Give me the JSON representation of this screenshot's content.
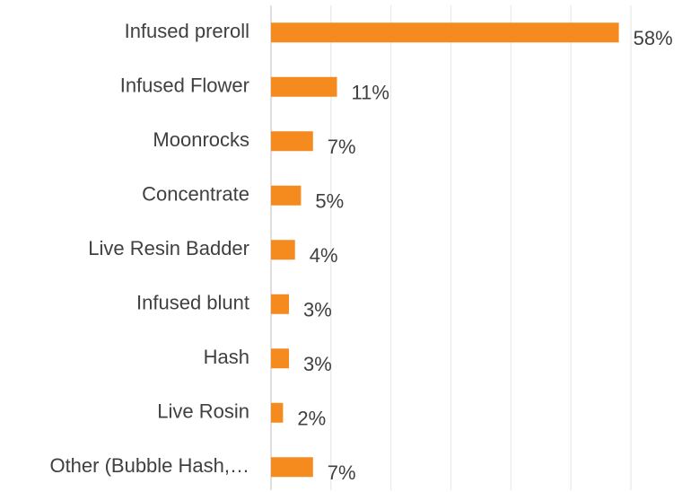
{
  "chart_data": {
    "type": "barh",
    "categories": [
      "Infused preroll",
      "Infused Flower",
      "Moonrocks",
      "Concentrate",
      "Live Resin Badder",
      "Infused blunt",
      "Hash",
      "Live Rosin",
      "Other (Bubble Hash,…"
    ],
    "values": [
      58,
      11,
      7,
      5,
      4,
      3,
      3,
      2,
      7
    ],
    "value_labels": [
      "58%",
      "11%",
      "7%",
      "5%",
      "4%",
      "3%",
      "3%",
      "2%",
      "7%"
    ],
    "color": "#f58a1f",
    "xlim": [
      0,
      60
    ],
    "xticks": [
      0,
      10,
      20,
      30,
      40,
      50,
      60
    ],
    "grid": true
  }
}
